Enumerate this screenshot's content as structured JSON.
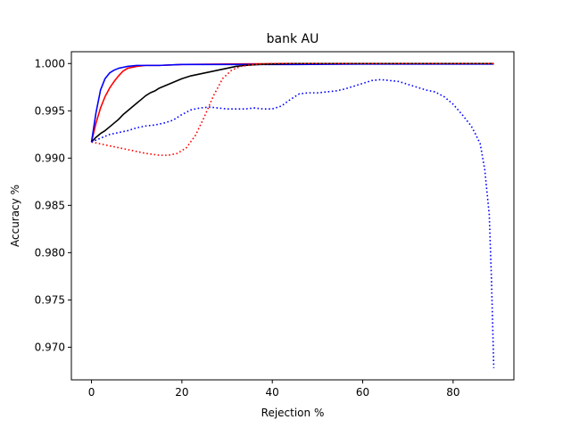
{
  "chart_data": {
    "type": "line",
    "title": "bank AU",
    "xlabel": "Rejection %",
    "ylabel": "Accuracy %",
    "xlim": [
      -4.45,
      93.45
    ],
    "ylim": [
      0.96655,
      1.00125
    ],
    "xticks": [
      0,
      20,
      40,
      60,
      80
    ],
    "xtick_labels": [
      "0",
      "20",
      "40",
      "60",
      "80"
    ],
    "yticks": [
      0.97,
      0.975,
      0.98,
      0.985,
      0.99,
      0.995,
      1.0
    ],
    "ytick_labels": [
      "0.970",
      "0.975",
      "0.980",
      "0.985",
      "0.990",
      "0.995",
      "1.000"
    ],
    "grid": false,
    "legend": "none",
    "series": [
      {
        "color": "#ff0000",
        "style": "solid",
        "points": [
          [
            0,
            0.9917
          ],
          [
            1,
            0.9937
          ],
          [
            2,
            0.9953
          ],
          [
            3,
            0.9965
          ],
          [
            4,
            0.9974
          ],
          [
            5,
            0.9981
          ],
          [
            6,
            0.9987
          ],
          [
            7,
            0.9992
          ],
          [
            8,
            0.9995
          ],
          [
            10,
            0.9997
          ],
          [
            12,
            0.9998
          ],
          [
            15,
            0.9998
          ],
          [
            20,
            0.9999
          ],
          [
            30,
            0.99995
          ],
          [
            45,
            1.0
          ],
          [
            60,
            1.0
          ],
          [
            75,
            1.0
          ],
          [
            89,
            1.0
          ]
        ]
      },
      {
        "color": "#0000ff",
        "style": "solid",
        "points": [
          [
            0,
            0.9917
          ],
          [
            1,
            0.9948
          ],
          [
            2,
            0.9972
          ],
          [
            3,
            0.9984
          ],
          [
            4,
            0.999
          ],
          [
            5,
            0.9993
          ],
          [
            6,
            0.9995
          ],
          [
            7,
            0.9996
          ],
          [
            8,
            0.9997
          ],
          [
            10,
            0.9998
          ],
          [
            15,
            0.9998
          ],
          [
            20,
            0.9999
          ],
          [
            30,
            0.9999
          ],
          [
            45,
            0.9999
          ],
          [
            60,
            0.99995
          ],
          [
            75,
            0.99995
          ],
          [
            89,
            0.99995
          ]
        ]
      },
      {
        "color": "#000000",
        "style": "solid",
        "points": [
          [
            0,
            0.9917
          ],
          [
            1,
            0.9922
          ],
          [
            2,
            0.9926
          ],
          [
            3,
            0.9929
          ],
          [
            4,
            0.9933
          ],
          [
            5,
            0.9937
          ],
          [
            6,
            0.9941
          ],
          [
            7,
            0.9946
          ],
          [
            8,
            0.995
          ],
          [
            9,
            0.9954
          ],
          [
            10,
            0.9958
          ],
          [
            11,
            0.9962
          ],
          [
            12,
            0.9966
          ],
          [
            13,
            0.9969
          ],
          [
            14,
            0.9971
          ],
          [
            15,
            0.9974
          ],
          [
            16,
            0.9976
          ],
          [
            17,
            0.9978
          ],
          [
            18,
            0.998
          ],
          [
            19,
            0.9982
          ],
          [
            20,
            0.9984
          ],
          [
            22,
            0.9987
          ],
          [
            24,
            0.9989
          ],
          [
            26,
            0.9991
          ],
          [
            28,
            0.9993
          ],
          [
            30,
            0.9995
          ],
          [
            32,
            0.9997
          ],
          [
            34,
            0.9998
          ],
          [
            37,
            0.9999
          ],
          [
            40,
            0.99995
          ],
          [
            45,
            1.0
          ],
          [
            60,
            1.0
          ],
          [
            75,
            1.0
          ],
          [
            89,
            1.0
          ]
        ]
      },
      {
        "color": "#ff0000",
        "style": "dotted",
        "points": [
          [
            0,
            0.9917
          ],
          [
            3,
            0.9914
          ],
          [
            6,
            0.9911
          ],
          [
            9,
            0.9908
          ],
          [
            12,
            0.9905
          ],
          [
            15,
            0.9903
          ],
          [
            17,
            0.9903
          ],
          [
            19,
            0.9905
          ],
          [
            21,
            0.9911
          ],
          [
            23,
            0.9924
          ],
          [
            25,
            0.9944
          ],
          [
            27,
            0.9966
          ],
          [
            29,
            0.9984
          ],
          [
            31,
            0.9993
          ],
          [
            33,
            0.9997
          ],
          [
            36,
            0.9999
          ],
          [
            40,
            1.0
          ],
          [
            50,
            1.0
          ],
          [
            60,
            1.0
          ],
          [
            75,
            1.0
          ],
          [
            89,
            1.0
          ]
        ]
      },
      {
        "color": "#0000ff",
        "style": "dotted",
        "points": [
          [
            0,
            0.9917
          ],
          [
            2,
            0.9921
          ],
          [
            4,
            0.9925
          ],
          [
            6,
            0.9927
          ],
          [
            8,
            0.9929
          ],
          [
            10,
            0.9932
          ],
          [
            12,
            0.9934
          ],
          [
            14,
            0.9935
          ],
          [
            16,
            0.9937
          ],
          [
            18,
            0.994
          ],
          [
            20,
            0.9946
          ],
          [
            22,
            0.9951
          ],
          [
            24,
            0.9953
          ],
          [
            26,
            0.9954
          ],
          [
            28,
            0.9953
          ],
          [
            30,
            0.9952
          ],
          [
            32,
            0.9952
          ],
          [
            34,
            0.9952
          ],
          [
            36,
            0.9953
          ],
          [
            38,
            0.9952
          ],
          [
            40,
            0.9952
          ],
          [
            42,
            0.9955
          ],
          [
            44,
            0.9962
          ],
          [
            46,
            0.9968
          ],
          [
            48,
            0.9969
          ],
          [
            50,
            0.9969
          ],
          [
            52,
            0.997
          ],
          [
            54,
            0.9971
          ],
          [
            56,
            0.9973
          ],
          [
            58,
            0.9976
          ],
          [
            60,
            0.9979
          ],
          [
            62,
            0.9982
          ],
          [
            64,
            0.9983
          ],
          [
            66,
            0.9982
          ],
          [
            68,
            0.9981
          ],
          [
            70,
            0.9978
          ],
          [
            72,
            0.9975
          ],
          [
            74,
            0.9972
          ],
          [
            76,
            0.997
          ],
          [
            78,
            0.9965
          ],
          [
            80,
            0.9957
          ],
          [
            82,
            0.9946
          ],
          [
            84,
            0.9934
          ],
          [
            85,
            0.9925
          ],
          [
            86,
            0.9915
          ],
          [
            87,
            0.9888
          ],
          [
            88,
            0.984
          ],
          [
            88.5,
            0.977
          ],
          [
            89,
            0.9678
          ]
        ]
      }
    ]
  }
}
